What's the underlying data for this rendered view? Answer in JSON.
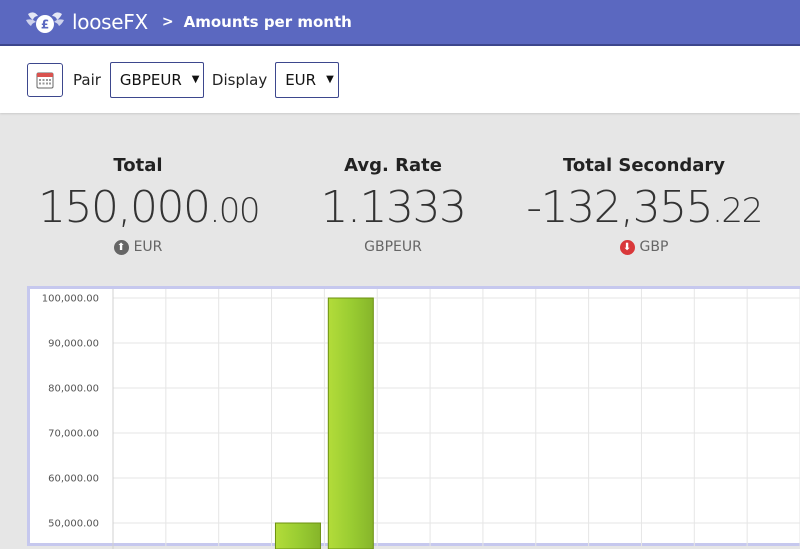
{
  "app": {
    "brand": "looseFX",
    "separator": ">",
    "page_title": "Amounts per month"
  },
  "toolbar": {
    "pair_label": "Pair",
    "pair_value": "GBPEUR",
    "display_label": "Display",
    "display_value": "EUR"
  },
  "stats": {
    "total": {
      "heading": "Total",
      "int": "150,000",
      "dec": ".00",
      "currency": "EUR",
      "direction": "up"
    },
    "avg_rate": {
      "heading": "Avg. Rate",
      "value": "1.1333",
      "pair": "GBPEUR"
    },
    "total_secondary": {
      "heading": "Total Secondary",
      "int": "-132,355",
      "dec": ".22",
      "currency": "GBP",
      "direction": "down"
    }
  },
  "colors": {
    "topbar": "#5b68c0",
    "up_arrow": "#666666",
    "down_arrow": "#d9383a",
    "bar_fill": "#9acd32",
    "bar_stroke": "#6c9010"
  },
  "chart_data": {
    "type": "bar",
    "y_ticks": [
      "100,000.00",
      "90,000.00",
      "80,000.00",
      "70,000.00",
      "60,000.00",
      "50,000.00"
    ],
    "ylim_visible": [
      48500,
      100000
    ],
    "grid": true,
    "values": [
      null,
      null,
      null,
      50000,
      100000,
      null,
      null,
      null,
      null,
      null,
      null,
      null,
      null
    ]
  }
}
